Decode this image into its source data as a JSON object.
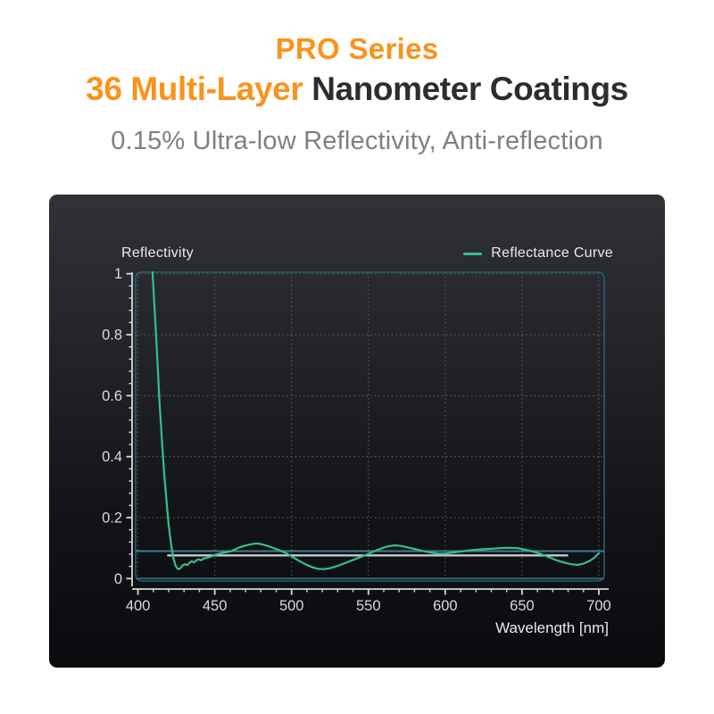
{
  "header": {
    "line1": "PRO Series",
    "line2_accent": "36 Multi-Layer",
    "line2_rest": " Nanometer Coatings",
    "subtitle": "0.15% Ultra-low Reflectivity, Anti-reflection",
    "accent_color": "#f7941e",
    "heading_color": "#2b2d30",
    "subtitle_color": "#7d7f83"
  },
  "chart_data": {
    "type": "line",
    "ylabel": "Reflectivity",
    "xlabel": "Wavelength [nm]",
    "legend": [
      {
        "label": "Reflectance Curve",
        "color": "#34c08b"
      }
    ],
    "xlim": [
      398.5,
      703.5
    ],
    "ylim": [
      -0.008,
      1.005
    ],
    "x_tick_values": [
      400,
      450,
      500,
      550,
      600,
      650,
      700
    ],
    "x_tick_labels": [
      "400",
      "450",
      "500",
      "550",
      "600",
      "650",
      "700"
    ],
    "y_tick_values": [
      0,
      0.2,
      0.4,
      0.6,
      0.8,
      1
    ],
    "y_tick_labels": [
      "0",
      "0.2",
      "0.4",
      "0.6",
      "0.8",
      "1"
    ],
    "minor_x_step": 10,
    "minor_y_step": 0.04,
    "grid": "dotted",
    "colors": {
      "grid": "#63656a",
      "frame": "#24616f",
      "axis": "#d8d9db",
      "tick_label": "#d9dadc",
      "axis_label": "#e9eaeb"
    },
    "reference_lines": [
      {
        "value": 0.09,
        "from": 398.5,
        "to": 703.5,
        "color": "#3e7e93",
        "width": 2
      },
      {
        "value": 0.076,
        "from": 419,
        "to": 680,
        "color": "#c7c9cb",
        "width": 2.4
      },
      {
        "value": 0.0,
        "from": 398.5,
        "to": 703.5,
        "color": "#2c6a7c",
        "width": 2
      }
    ],
    "series": [
      {
        "name": "Reflectance Curve",
        "color": "#34c08b",
        "points": [
          [
            409.5,
            1.005
          ],
          [
            411,
            0.87
          ],
          [
            412.5,
            0.73
          ],
          [
            414,
            0.58
          ],
          [
            415.5,
            0.46
          ],
          [
            417,
            0.35
          ],
          [
            418.5,
            0.26
          ],
          [
            420,
            0.175
          ],
          [
            421.5,
            0.115
          ],
          [
            423,
            0.068
          ],
          [
            424.5,
            0.042
          ],
          [
            426,
            0.031
          ],
          [
            427.5,
            0.033
          ],
          [
            429,
            0.043
          ],
          [
            430.5,
            0.047
          ],
          [
            432,
            0.044
          ],
          [
            433.5,
            0.052
          ],
          [
            435,
            0.057
          ],
          [
            436.5,
            0.053
          ],
          [
            438,
            0.06
          ],
          [
            439.5,
            0.063
          ],
          [
            441,
            0.06
          ],
          [
            443,
            0.066
          ],
          [
            445,
            0.068
          ],
          [
            448,
            0.073
          ],
          [
            451,
            0.079
          ],
          [
            454,
            0.083
          ],
          [
            457,
            0.086
          ],
          [
            460,
            0.089
          ],
          [
            463,
            0.095
          ],
          [
            466,
            0.102
          ],
          [
            469,
            0.107
          ],
          [
            472,
            0.111
          ],
          [
            475,
            0.114
          ],
          [
            478,
            0.115
          ],
          [
            481,
            0.112
          ],
          [
            485,
            0.106
          ],
          [
            489,
            0.099
          ],
          [
            493,
            0.091
          ],
          [
            497,
            0.082
          ],
          [
            501,
            0.07
          ],
          [
            505,
            0.058
          ],
          [
            509,
            0.047
          ],
          [
            513,
            0.038
          ],
          [
            517,
            0.032
          ],
          [
            521,
            0.031
          ],
          [
            525,
            0.034
          ],
          [
            529,
            0.04
          ],
          [
            534,
            0.049
          ],
          [
            539,
            0.059
          ],
          [
            544,
            0.069
          ],
          [
            549,
            0.079
          ],
          [
            554,
            0.09
          ],
          [
            559,
            0.1
          ],
          [
            563,
            0.106
          ],
          [
            567,
            0.109
          ],
          [
            571,
            0.107
          ],
          [
            575,
            0.103
          ],
          [
            580,
            0.097
          ],
          [
            585,
            0.091
          ],
          [
            590,
            0.086
          ],
          [
            595,
            0.082
          ],
          [
            600,
            0.082
          ],
          [
            606,
            0.086
          ],
          [
            612,
            0.09
          ],
          [
            618,
            0.094
          ],
          [
            624,
            0.096
          ],
          [
            630,
            0.098
          ],
          [
            636,
            0.1
          ],
          [
            642,
            0.101
          ],
          [
            647,
            0.1
          ],
          [
            652,
            0.095
          ],
          [
            657,
            0.089
          ],
          [
            662,
            0.081
          ],
          [
            667,
            0.071
          ],
          [
            672,
            0.061
          ],
          [
            677,
            0.053
          ],
          [
            682,
            0.047
          ],
          [
            686,
            0.045
          ],
          [
            690,
            0.049
          ],
          [
            694,
            0.058
          ],
          [
            697,
            0.068
          ],
          [
            700,
            0.083
          ]
        ]
      }
    ]
  }
}
